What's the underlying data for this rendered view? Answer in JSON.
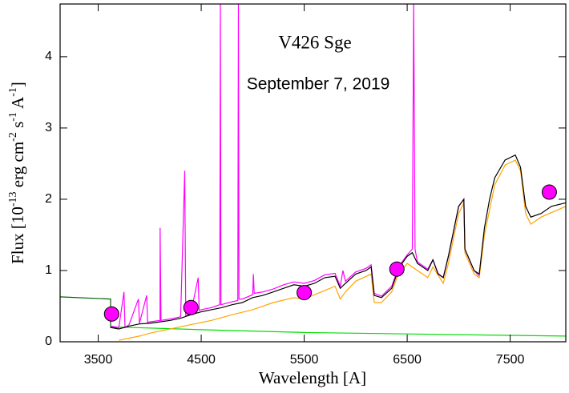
{
  "chart_data": {
    "type": "line",
    "title": "V426 Sge",
    "subtitle": "September 7, 2019",
    "xlabel": "Wavelength [A]",
    "ylabel_parts": [
      "Flux [10",
      "-13",
      " erg cm",
      "-2",
      " s",
      "-1",
      " A",
      "-1",
      "]"
    ],
    "xlim": [
      3130,
      8040
    ],
    "ylim": [
      0,
      4.74
    ],
    "xticks": [
      3500,
      4500,
      5500,
      6500,
      7500
    ],
    "yticks": [
      0,
      1,
      2,
      3,
      4
    ],
    "series": [
      {
        "style": "line",
        "color": "#00dd00",
        "x": [
          3620,
          4500,
          5500,
          6500,
          7500,
          8040
        ],
        "values": [
          0.21,
          0.17,
          0.13,
          0.11,
          0.09,
          0.08
        ]
      },
      {
        "style": "line",
        "color": "#006400",
        "x": [
          3130,
          3620,
          3620,
          3700
        ],
        "values": [
          0.63,
          0.6,
          0.2,
          0.2
        ]
      },
      {
        "style": "line",
        "color": "#ff00ff",
        "x": [
          3620,
          3700,
          3750,
          3760,
          3800,
          3890,
          3900,
          3970,
          3980,
          4000,
          4100,
          4101,
          4110,
          4200,
          4300,
          4340,
          4350,
          4400,
          4471,
          4480,
          4500,
          4600,
          4680,
          4686,
          4692,
          4800,
          4855,
          4861,
          4867,
          4900,
          5000,
          5007,
          5015,
          5100,
          5200,
          5300,
          5400,
          5500,
          5600,
          5700,
          5800,
          5850,
          5876,
          5900,
          6000,
          6100,
          6150,
          6180,
          6250,
          6350,
          6400,
          6450,
          6500,
          6550,
          6563,
          6576,
          6600,
          6700,
          6750,
          6800,
          6850,
          6900,
          7000,
          7050,
          7060,
          7150,
          7200
        ],
        "values": [
          0.22,
          0.2,
          0.7,
          0.2,
          0.24,
          0.6,
          0.26,
          0.65,
          0.27,
          0.28,
          0.3,
          1.6,
          0.3,
          0.32,
          0.35,
          2.4,
          0.36,
          0.4,
          0.9,
          0.44,
          0.45,
          0.48,
          0.52,
          4.74,
          0.52,
          0.56,
          0.58,
          4.74,
          0.6,
          0.6,
          0.66,
          0.95,
          0.68,
          0.7,
          0.74,
          0.8,
          0.84,
          0.82,
          0.86,
          0.94,
          0.96,
          0.78,
          1.0,
          0.85,
          0.98,
          1.03,
          1.08,
          0.68,
          0.64,
          0.78,
          0.98,
          1.12,
          1.22,
          1.3,
          4.74,
          1.3,
          1.12,
          1.02,
          1.15,
          0.96,
          0.9,
          1.2,
          1.9,
          2.0,
          1.3,
          1.0,
          0.92
        ]
      },
      {
        "style": "line",
        "color": "#ffa500",
        "x": [
          3700,
          3800,
          3900,
          4000,
          4200,
          4400,
          4600,
          4800,
          5000,
          5200,
          5400,
          5500,
          5700,
          5800,
          5850,
          5900,
          6000,
          6150,
          6180,
          6250,
          6350,
          6400,
          6500,
          6600,
          6700,
          6750,
          6850,
          6900,
          7000,
          7050,
          7060,
          7150,
          7200,
          7250,
          7350,
          7450,
          7550,
          7600,
          7650,
          7700,
          7800,
          8040
        ],
        "values": [
          0.02,
          0.05,
          0.08,
          0.12,
          0.18,
          0.24,
          0.3,
          0.38,
          0.45,
          0.55,
          0.62,
          0.6,
          0.72,
          0.78,
          0.6,
          0.7,
          0.85,
          0.95,
          0.55,
          0.55,
          0.7,
          0.9,
          1.1,
          1.0,
          0.9,
          1.05,
          0.82,
          1.1,
          1.8,
          1.95,
          1.25,
          0.95,
          0.9,
          1.5,
          2.2,
          2.48,
          2.55,
          2.4,
          1.8,
          1.65,
          1.75,
          1.9
        ]
      },
      {
        "style": "line",
        "color": "#000000",
        "x": [
          3620,
          3700,
          3800,
          3900,
          4000,
          4100,
          4200,
          4300,
          4400,
          4500,
          4600,
          4700,
          4800,
          4900,
          5000,
          5100,
          5200,
          5300,
          5400,
          5500,
          5600,
          5700,
          5800,
          5850,
          5900,
          6000,
          6100,
          6150,
          6180,
          6250,
          6350,
          6400,
          6450,
          6500,
          6550,
          6600,
          6700,
          6750,
          6800,
          6850,
          6900,
          7000,
          7050,
          7060,
          7150,
          7200,
          7250,
          7300,
          7350,
          7450,
          7550,
          7600,
          7650,
          7700,
          7800,
          7900,
          8040
        ],
        "values": [
          0.2,
          0.18,
          0.22,
          0.25,
          0.26,
          0.28,
          0.3,
          0.33,
          0.38,
          0.42,
          0.45,
          0.48,
          0.52,
          0.55,
          0.62,
          0.65,
          0.7,
          0.75,
          0.8,
          0.78,
          0.82,
          0.9,
          0.92,
          0.75,
          0.82,
          0.95,
          1.0,
          1.05,
          0.65,
          0.62,
          0.75,
          0.95,
          1.1,
          1.2,
          1.25,
          1.1,
          1.0,
          1.15,
          0.95,
          0.9,
          1.2,
          1.9,
          2.0,
          1.3,
          1.0,
          0.95,
          1.6,
          2.0,
          2.3,
          2.55,
          2.62,
          2.45,
          1.9,
          1.75,
          1.8,
          1.9,
          1.95
        ]
      },
      {
        "style": "scatter",
        "color": "#ff00ff",
        "x": [
          3630,
          4400,
          5500,
          6400,
          7880
        ],
        "values": [
          0.39,
          0.48,
          0.69,
          1.02,
          2.1
        ]
      }
    ]
  }
}
